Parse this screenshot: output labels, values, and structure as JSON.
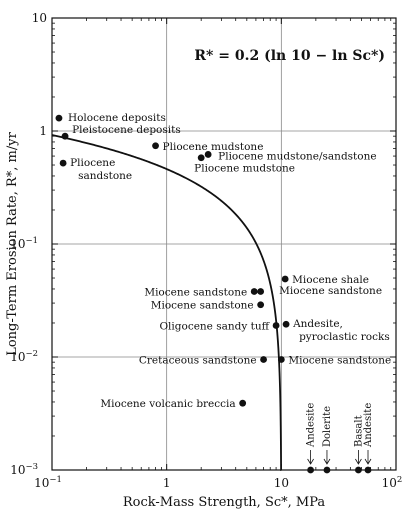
{
  "chart_data": {
    "type": "scatter",
    "title": "",
    "equation": "R* = 0.2 (ln 10 − ln Sc*)",
    "xlabel": "Rock-Mass Strength, Sc*, MPa",
    "ylabel": "Long-Term Erosion Rate, R*, m/yr",
    "xscale": "log",
    "yscale": "log",
    "xlim": [
      0.1,
      100
    ],
    "ylim": [
      0.001,
      10
    ],
    "x_ticks": [
      {
        "value": 0.1,
        "base": "10",
        "exp": "−1"
      },
      {
        "value": 1,
        "base": "1",
        "exp": ""
      },
      {
        "value": 10,
        "base": "10",
        "exp": ""
      },
      {
        "value": 100,
        "base": "10",
        "exp": "2"
      }
    ],
    "y_ticks": [
      {
        "value": 10,
        "base": "10",
        "exp": ""
      },
      {
        "value": 1,
        "base": "1",
        "exp": ""
      },
      {
        "value": 0.1,
        "base": "10",
        "exp": "−1"
      },
      {
        "value": 0.01,
        "base": "10",
        "exp": "−2"
      },
      {
        "value": 0.001,
        "base": "10",
        "exp": "−3"
      }
    ],
    "grid": true,
    "curve": {
      "formula": "R = 0.2*(ln10 - ln S)",
      "xmax": 10
    },
    "points": [
      {
        "x": 0.115,
        "y": 1.3,
        "label": "Holocene deposits",
        "anchor": "right"
      },
      {
        "x": 0.13,
        "y": 0.9,
        "label": "Pleistocene deposits",
        "anchor": "right"
      },
      {
        "x": 0.125,
        "y": 0.52,
        "label": "Pliocene sandstone",
        "anchor": "right",
        "multiline": true
      },
      {
        "x": 0.8,
        "y": 0.74,
        "label": "Pliocene mudstone",
        "anchor": "right"
      },
      {
        "x": 2.0,
        "y": 0.58,
        "label": "",
        "anchor": "right"
      },
      {
        "x": 2.3,
        "y": 0.62,
        "label": "Pliocene mudstone/sandstone",
        "anchor": "right"
      },
      {
        "x": 2.3,
        "y": 0.62,
        "label": "Pliocene mudstone",
        "anchor": "below"
      },
      {
        "x": 5.8,
        "y": 0.038,
        "label": "Miocene sandstone",
        "anchor": "left"
      },
      {
        "x": 6.6,
        "y": 0.038,
        "label": "",
        "anchor": "left"
      },
      {
        "x": 6.6,
        "y": 0.029,
        "label": "Miocene sandstone",
        "anchor": "left"
      },
      {
        "x": 10.8,
        "y": 0.049,
        "label": "Miocene shale",
        "anchor": "right"
      },
      {
        "x": 10.8,
        "y": 0.049,
        "label": "Miocene sandstone",
        "anchor": "right-below"
      },
      {
        "x": 9.0,
        "y": 0.019,
        "label": "Oligocene sandy tuff",
        "anchor": "left"
      },
      {
        "x": 11.0,
        "y": 0.0195,
        "label": "Andesite, pyroclastic rocks",
        "anchor": "right",
        "multiline": true
      },
      {
        "x": 7.0,
        "y": 0.0095,
        "label": "Cretaceous sandstone",
        "anchor": "left"
      },
      {
        "x": 10.0,
        "y": 0.0095,
        "label": "Miocene sandstone",
        "anchor": "right"
      },
      {
        "x": 4.6,
        "y": 0.0039,
        "label": "Miocene volcanic breccia",
        "anchor": "left"
      }
    ],
    "zero_rate_points": [
      {
        "x": 18,
        "label": "Andesite"
      },
      {
        "x": 25,
        "label": "Dolerite"
      },
      {
        "x": 47,
        "label": "Basalt"
      },
      {
        "x": 57,
        "label": "Andesite"
      }
    ],
    "line_labels": {
      "pliocene_sandstone": [
        "Pliocene",
        "sandstone"
      ],
      "andesite_pyro": [
        "Andesite,",
        "pyroclastic rocks"
      ]
    }
  }
}
